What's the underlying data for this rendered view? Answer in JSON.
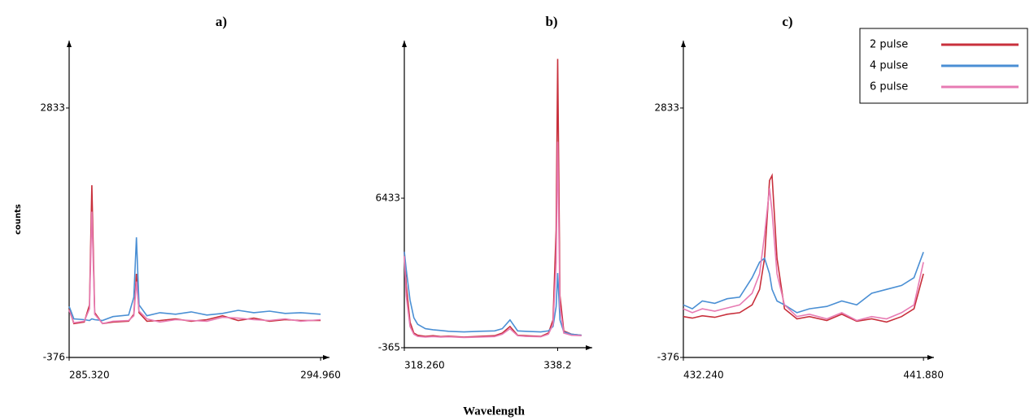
{
  "figure": {
    "y_label": "counts",
    "x_label": "Wavelength"
  },
  "chart_data": [
    {
      "type": "line",
      "title": "a)",
      "x": [
        285.32,
        285.5,
        285.9,
        286.1,
        286.19,
        286.3,
        286.6,
        287.0,
        287.6,
        287.8,
        287.9,
        288.0,
        288.3,
        288.8,
        289.4,
        290.0,
        290.6,
        291.2,
        291.8,
        292.4,
        293.0,
        293.6,
        294.2,
        294.96
      ],
      "series": [
        {
          "name": "2 pulse",
          "color": "#c8303c",
          "values": [
            250,
            60,
            80,
            300,
            1840,
            200,
            60,
            80,
            90,
            180,
            700,
            200,
            90,
            100,
            120,
            90,
            110,
            160,
            100,
            130,
            90,
            110,
            100,
            100
          ]
        },
        {
          "name": "4 pulse",
          "color": "#4a8fd4",
          "values": [
            280,
            120,
            110,
            100,
            120,
            110,
            100,
            150,
            170,
            400,
            1170,
            300,
            160,
            200,
            180,
            210,
            170,
            190,
            230,
            200,
            220,
            190,
            200,
            180
          ]
        },
        {
          "name": "6 pulse",
          "color": "#e77bb3",
          "values": [
            230,
            70,
            90,
            250,
            1500,
            180,
            60,
            90,
            100,
            160,
            600,
            220,
            120,
            80,
            110,
            100,
            90,
            140,
            130,
            110,
            100,
            120,
            90,
            110
          ]
        }
      ],
      "xlim": [
        285.32,
        295.3
      ],
      "xticks": [
        {
          "value": 285.32,
          "label": "285.320"
        },
        {
          "value": 294.96,
          "label": "294.960"
        }
      ],
      "ylim": [
        -376,
        3700
      ],
      "yticks": [
        -376,
        2833
      ]
    },
    {
      "type": "line",
      "title": "b)",
      "x": [
        318.26,
        318.5,
        319.0,
        319.5,
        320,
        321,
        322,
        323,
        324,
        326,
        328,
        330,
        331,
        332,
        333,
        334,
        336,
        337,
        337.6,
        338.0,
        338.2,
        338.5,
        339,
        340,
        341.3
      ],
      "series": [
        {
          "name": "2 pulse",
          "color": "#c8303c",
          "values": [
            4000,
            2500,
            800,
            300,
            200,
            150,
            180,
            140,
            160,
            120,
            150,
            180,
            300,
            600,
            200,
            180,
            150,
            300,
            900,
            5000,
            12770,
            2000,
            400,
            250,
            200
          ]
        },
        {
          "name": "4 pulse",
          "color": "#4a8fd4",
          "values": [
            4000,
            3200,
            1800,
            1000,
            700,
            500,
            450,
            420,
            380,
            350,
            380,
            400,
            500,
            900,
            400,
            380,
            350,
            400,
            600,
            1500,
            3030,
            900,
            350,
            250,
            200
          ]
        },
        {
          "name": "6 pulse",
          "color": "#e77bb3",
          "values": [
            3800,
            2000,
            600,
            250,
            150,
            120,
            140,
            120,
            130,
            100,
            120,
            140,
            250,
            500,
            180,
            150,
            130,
            250,
            700,
            3500,
            9000,
            1500,
            300,
            200,
            180
          ]
        }
      ],
      "xlim": [
        318.26,
        342.7
      ],
      "xticks": [
        {
          "value": 318.26,
          "label": "318.260"
        },
        338.2
      ],
      "ylim": [
        -365,
        13600
      ],
      "yticks": [
        -365,
        6433
      ]
    },
    {
      "type": "line",
      "title": "c)",
      "x": [
        432.24,
        432.6,
        433.0,
        433.5,
        434.0,
        434.5,
        435.0,
        435.3,
        435.5,
        435.7,
        435.8,
        436.0,
        436.3,
        436.8,
        437.3,
        438.0,
        438.6,
        439.2,
        439.8,
        440.4,
        441.0,
        441.5,
        441.88
      ],
      "series": [
        {
          "name": "2 pulse",
          "color": "#c8303c",
          "values": [
            150,
            130,
            160,
            140,
            180,
            200,
            300,
            500,
            900,
            1900,
            1965,
            900,
            250,
            120,
            150,
            100,
            180,
            90,
            120,
            80,
            150,
            250,
            700
          ]
        },
        {
          "name": "4 pulse",
          "color": "#4a8fd4",
          "values": [
            300,
            250,
            350,
            320,
            380,
            400,
            650,
            850,
            900,
            700,
            500,
            350,
            300,
            200,
            250,
            280,
            350,
            300,
            450,
            500,
            550,
            650,
            980
          ]
        },
        {
          "name": "6 pulse",
          "color": "#e77bb3",
          "values": [
            250,
            200,
            250,
            220,
            260,
            300,
            450,
            700,
            1200,
            1800,
            1500,
            700,
            300,
            150,
            180,
            120,
            200,
            100,
            150,
            120,
            200,
            300,
            850
          ]
        }
      ],
      "xlim": [
        432.24,
        442.3
      ],
      "xticks": [
        {
          "value": 432.24,
          "label": "432.240"
        },
        {
          "value": 441.88,
          "label": "441.880"
        }
      ],
      "ylim": [
        -376,
        3700
      ],
      "yticks": [
        -376,
        2833
      ],
      "legend": "top-right"
    }
  ]
}
